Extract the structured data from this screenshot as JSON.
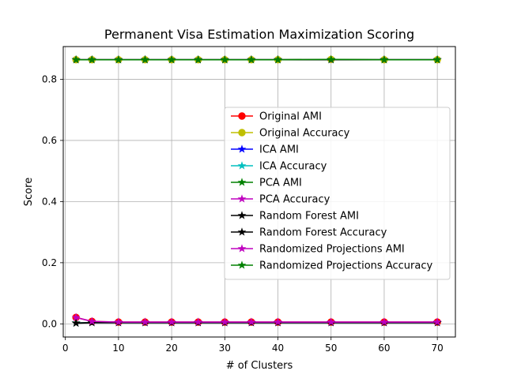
{
  "chart_data": {
    "type": "line",
    "title": "Permanent Visa Estimation Maximization Scoring",
    "xlabel": "# of Clusters",
    "ylabel": "Score",
    "xlim": [
      -0.4,
      73.4
    ],
    "ylim": [
      -0.043,
      0.907
    ],
    "xticks": [
      0,
      10,
      20,
      30,
      40,
      50,
      60,
      70
    ],
    "yticks": [
      0.0,
      0.2,
      0.4,
      0.6,
      0.8
    ],
    "xtick_labels": [
      "0",
      "10",
      "20",
      "30",
      "40",
      "50",
      "60",
      "70"
    ],
    "ytick_labels": [
      "0.0",
      "0.2",
      "0.4",
      "0.6",
      "0.8"
    ],
    "grid": true,
    "legend_position": "center-right",
    "x": [
      2,
      5,
      10,
      15,
      20,
      25,
      30,
      35,
      40,
      50,
      60,
      70
    ],
    "series": [
      {
        "name": "Original AMI",
        "color": "#ff0000",
        "marker": "circle",
        "values": [
          0.021,
          0.008,
          0.006,
          0.006,
          0.006,
          0.006,
          0.006,
          0.006,
          0.006,
          0.006,
          0.006,
          0.006
        ]
      },
      {
        "name": "Original Accuracy",
        "color": "#bfbf00",
        "marker": "circle",
        "values": [
          0.864,
          0.864,
          0.864,
          0.864,
          0.864,
          0.864,
          0.864,
          0.864,
          0.864,
          0.865,
          0.864,
          0.864
        ]
      },
      {
        "name": "ICA AMI",
        "color": "#0000ff",
        "marker": "star",
        "values": [
          0.003,
          0.004,
          0.004,
          0.004,
          0.004,
          0.004,
          0.004,
          0.004,
          0.004,
          0.004,
          0.004,
          0.004
        ]
      },
      {
        "name": "ICA Accuracy",
        "color": "#00bfbf",
        "marker": "star",
        "values": [
          0.864,
          0.864,
          0.864,
          0.864,
          0.864,
          0.864,
          0.864,
          0.864,
          0.864,
          0.864,
          0.864,
          0.864
        ]
      },
      {
        "name": "PCA AMI",
        "color": "#008000",
        "marker": "star",
        "values": [
          0.003,
          0.004,
          0.004,
          0.004,
          0.004,
          0.004,
          0.004,
          0.004,
          0.004,
          0.004,
          0.004,
          0.004
        ]
      },
      {
        "name": "PCA Accuracy",
        "color": "#bf00bf",
        "marker": "star",
        "values": [
          0.864,
          0.864,
          0.864,
          0.864,
          0.864,
          0.864,
          0.864,
          0.864,
          0.864,
          0.864,
          0.864,
          0.864
        ]
      },
      {
        "name": "Random Forest AMI",
        "color": "#000000",
        "marker": "star",
        "values": [
          0.002,
          0.004,
          0.004,
          0.004,
          0.004,
          0.004,
          0.004,
          0.004,
          0.004,
          0.004,
          0.004,
          0.004
        ]
      },
      {
        "name": "Random Forest Accuracy",
        "color": "#000000",
        "marker": "star",
        "values": [
          0.864,
          0.864,
          0.864,
          0.864,
          0.864,
          0.864,
          0.864,
          0.864,
          0.864,
          0.864,
          0.864,
          0.864
        ]
      },
      {
        "name": "Randomized Projections AMI",
        "color": "#bf00bf",
        "marker": "star",
        "values": [
          0.021,
          0.008,
          0.006,
          0.006,
          0.006,
          0.006,
          0.006,
          0.006,
          0.006,
          0.006,
          0.006,
          0.006
        ]
      },
      {
        "name": "Randomized Projections Accuracy",
        "color": "#008000",
        "marker": "star",
        "values": [
          0.864,
          0.864,
          0.864,
          0.864,
          0.864,
          0.864,
          0.864,
          0.864,
          0.864,
          0.865,
          0.864,
          0.864
        ]
      }
    ]
  }
}
